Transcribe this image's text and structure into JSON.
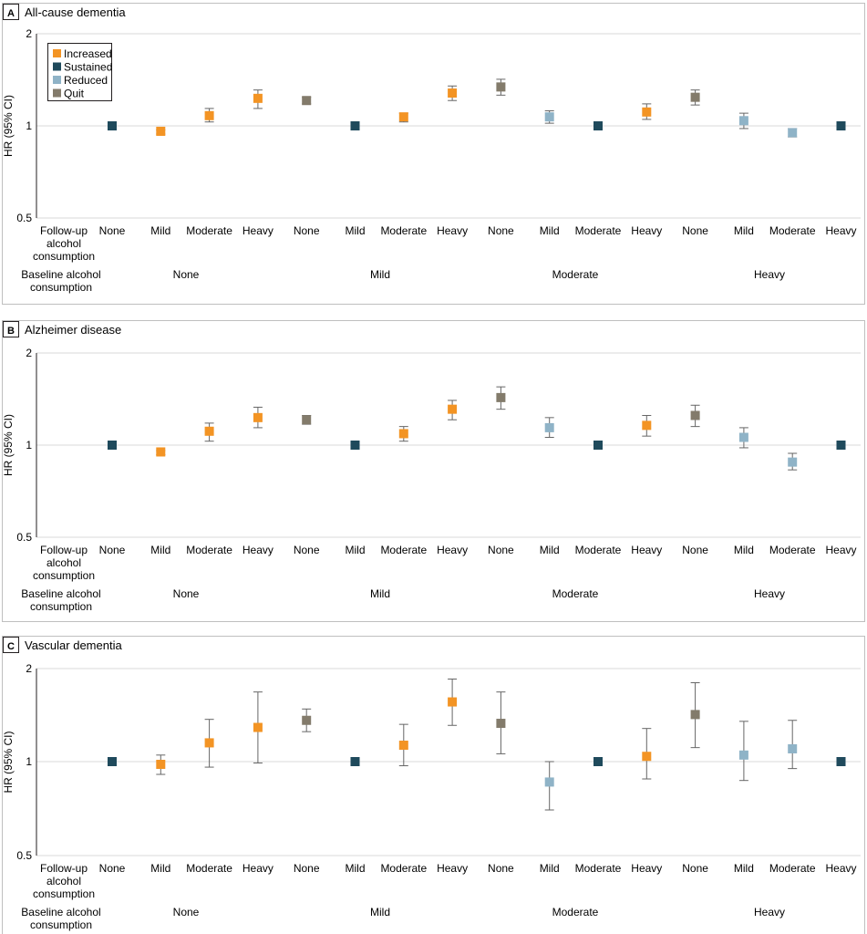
{
  "chart_data": [
    {
      "type": "scatter",
      "panel_label": "A",
      "title": "All-cause dementia",
      "ylabel": "HR (95% CI)",
      "yscale": "log",
      "ylim": [
        0.5,
        2
      ],
      "yticks": [
        "0.5",
        "1",
        "2"
      ],
      "row_label_followup": [
        "Follow-up",
        "alcohol",
        "consumption"
      ],
      "row_label_baseline": [
        "Baseline alcohol",
        "consumption"
      ],
      "legend": [
        "Increased",
        "Sustained",
        "Reduced",
        "Quit"
      ],
      "baseline_groups": [
        "None",
        "Mild",
        "Moderate",
        "Heavy"
      ],
      "points": [
        {
          "baseline": "None",
          "followup": "None",
          "status": "Sustained",
          "hr": 1.0
        },
        {
          "baseline": "None",
          "followup": "Mild",
          "status": "Increased",
          "hr": 0.96,
          "lo": 0.94,
          "hi": 0.97
        },
        {
          "baseline": "None",
          "followup": "Moderate",
          "status": "Increased",
          "hr": 1.08,
          "lo": 1.03,
          "hi": 1.14
        },
        {
          "baseline": "None",
          "followup": "Heavy",
          "status": "Increased",
          "hr": 1.23,
          "lo": 1.14,
          "hi": 1.31
        },
        {
          "baseline": "Mild",
          "followup": "None",
          "status": "Quit",
          "hr": 1.21,
          "lo": 1.18,
          "hi": 1.24
        },
        {
          "baseline": "Mild",
          "followup": "Mild",
          "status": "Sustained",
          "hr": 1.0
        },
        {
          "baseline": "Mild",
          "followup": "Moderate",
          "status": "Increased",
          "hr": 1.07,
          "lo": 1.03,
          "hi": 1.1
        },
        {
          "baseline": "Mild",
          "followup": "Heavy",
          "status": "Increased",
          "hr": 1.28,
          "lo": 1.21,
          "hi": 1.35
        },
        {
          "baseline": "Moderate",
          "followup": "None",
          "status": "Quit",
          "hr": 1.34,
          "lo": 1.26,
          "hi": 1.42
        },
        {
          "baseline": "Moderate",
          "followup": "Mild",
          "status": "Reduced",
          "hr": 1.07,
          "lo": 1.02,
          "hi": 1.12
        },
        {
          "baseline": "Moderate",
          "followup": "Moderate",
          "status": "Sustained",
          "hr": 1.0
        },
        {
          "baseline": "Moderate",
          "followup": "Heavy",
          "status": "Increased",
          "hr": 1.11,
          "lo": 1.05,
          "hi": 1.18
        },
        {
          "baseline": "Heavy",
          "followup": "None",
          "status": "Quit",
          "hr": 1.24,
          "lo": 1.17,
          "hi": 1.31
        },
        {
          "baseline": "Heavy",
          "followup": "Mild",
          "status": "Reduced",
          "hr": 1.04,
          "lo": 0.98,
          "hi": 1.1
        },
        {
          "baseline": "Heavy",
          "followup": "Moderate",
          "status": "Reduced",
          "hr": 0.95,
          "lo": 0.92,
          "hi": 0.98
        },
        {
          "baseline": "Heavy",
          "followup": "Heavy",
          "status": "Sustained",
          "hr": 1.0
        }
      ]
    },
    {
      "type": "scatter",
      "panel_label": "B",
      "title": "Alzheimer disease",
      "ylabel": "HR (95% CI)",
      "yscale": "log",
      "ylim": [
        0.5,
        2
      ],
      "yticks": [
        "0.5",
        "1",
        "2"
      ],
      "row_label_followup": [
        "Follow-up",
        "alcohol",
        "consumption"
      ],
      "row_label_baseline": [
        "Baseline alcohol",
        "consumption"
      ],
      "baseline_groups": [
        "None",
        "Mild",
        "Moderate",
        "Heavy"
      ],
      "points": [
        {
          "baseline": "None",
          "followup": "None",
          "status": "Sustained",
          "hr": 1.0
        },
        {
          "baseline": "None",
          "followup": "Mild",
          "status": "Increased",
          "hr": 0.95,
          "lo": 0.93,
          "hi": 0.96
        },
        {
          "baseline": "None",
          "followup": "Moderate",
          "status": "Increased",
          "hr": 1.11,
          "lo": 1.03,
          "hi": 1.18
        },
        {
          "baseline": "None",
          "followup": "Heavy",
          "status": "Increased",
          "hr": 1.23,
          "lo": 1.14,
          "hi": 1.33
        },
        {
          "baseline": "Mild",
          "followup": "None",
          "status": "Quit",
          "hr": 1.21,
          "lo": 1.17,
          "hi": 1.25
        },
        {
          "baseline": "Mild",
          "followup": "Mild",
          "status": "Sustained",
          "hr": 1.0
        },
        {
          "baseline": "Mild",
          "followup": "Moderate",
          "status": "Increased",
          "hr": 1.09,
          "lo": 1.03,
          "hi": 1.15
        },
        {
          "baseline": "Mild",
          "followup": "Heavy",
          "status": "Increased",
          "hr": 1.31,
          "lo": 1.21,
          "hi": 1.4
        },
        {
          "baseline": "Moderate",
          "followup": "None",
          "status": "Quit",
          "hr": 1.43,
          "lo": 1.31,
          "hi": 1.55
        },
        {
          "baseline": "Moderate",
          "followup": "Mild",
          "status": "Reduced",
          "hr": 1.14,
          "lo": 1.06,
          "hi": 1.23
        },
        {
          "baseline": "Moderate",
          "followup": "Moderate",
          "status": "Sustained",
          "hr": 1.0
        },
        {
          "baseline": "Moderate",
          "followup": "Heavy",
          "status": "Increased",
          "hr": 1.16,
          "lo": 1.07,
          "hi": 1.25
        },
        {
          "baseline": "Heavy",
          "followup": "None",
          "status": "Quit",
          "hr": 1.25,
          "lo": 1.15,
          "hi": 1.35
        },
        {
          "baseline": "Heavy",
          "followup": "Mild",
          "status": "Reduced",
          "hr": 1.06,
          "lo": 0.98,
          "hi": 1.14
        },
        {
          "baseline": "Heavy",
          "followup": "Moderate",
          "status": "Reduced",
          "hr": 0.88,
          "lo": 0.83,
          "hi": 0.94
        },
        {
          "baseline": "Heavy",
          "followup": "Heavy",
          "status": "Sustained",
          "hr": 1.0
        }
      ]
    },
    {
      "type": "scatter",
      "panel_label": "C",
      "title": "Vascular dementia",
      "ylabel": "HR (95% CI)",
      "yscale": "log",
      "ylim": [
        0.5,
        2
      ],
      "yticks": [
        "0.5",
        "1",
        "2"
      ],
      "row_label_followup": [
        "Follow-up",
        "alcohol",
        "consumption"
      ],
      "row_label_baseline": [
        "Baseline alcohol",
        "consumption"
      ],
      "baseline_groups": [
        "None",
        "Mild",
        "Moderate",
        "Heavy"
      ],
      "points": [
        {
          "baseline": "None",
          "followup": "None",
          "status": "Sustained",
          "hr": 1.0
        },
        {
          "baseline": "None",
          "followup": "Mild",
          "status": "Increased",
          "hr": 0.98,
          "lo": 0.91,
          "hi": 1.05
        },
        {
          "baseline": "None",
          "followup": "Moderate",
          "status": "Increased",
          "hr": 1.15,
          "lo": 0.96,
          "hi": 1.37
        },
        {
          "baseline": "None",
          "followup": "Heavy",
          "status": "Increased",
          "hr": 1.29,
          "lo": 0.99,
          "hi": 1.68
        },
        {
          "baseline": "Mild",
          "followup": "None",
          "status": "Quit",
          "hr": 1.36,
          "lo": 1.25,
          "hi": 1.48
        },
        {
          "baseline": "Mild",
          "followup": "Mild",
          "status": "Sustained",
          "hr": 1.0
        },
        {
          "baseline": "Mild",
          "followup": "Moderate",
          "status": "Increased",
          "hr": 1.13,
          "lo": 0.97,
          "hi": 1.32
        },
        {
          "baseline": "Mild",
          "followup": "Heavy",
          "status": "Increased",
          "hr": 1.56,
          "lo": 1.31,
          "hi": 1.85
        },
        {
          "baseline": "Moderate",
          "followup": "None",
          "status": "Quit",
          "hr": 1.33,
          "lo": 1.06,
          "hi": 1.68
        },
        {
          "baseline": "Moderate",
          "followup": "Mild",
          "status": "Reduced",
          "hr": 0.86,
          "lo": 0.7,
          "hi": 1.0
        },
        {
          "baseline": "Moderate",
          "followup": "Moderate",
          "status": "Sustained",
          "hr": 1.0
        },
        {
          "baseline": "Moderate",
          "followup": "Heavy",
          "status": "Increased",
          "hr": 1.04,
          "lo": 0.88,
          "hi": 1.28
        },
        {
          "baseline": "Heavy",
          "followup": "None",
          "status": "Quit",
          "hr": 1.42,
          "lo": 1.11,
          "hi": 1.8
        },
        {
          "baseline": "Heavy",
          "followup": "Mild",
          "status": "Reduced",
          "hr": 1.05,
          "lo": 0.87,
          "hi": 1.35
        },
        {
          "baseline": "Heavy",
          "followup": "Moderate",
          "status": "Reduced",
          "hr": 1.1,
          "lo": 0.95,
          "hi": 1.36
        },
        {
          "baseline": "Heavy",
          "followup": "Heavy",
          "status": "Sustained",
          "hr": 1.0
        }
      ]
    }
  ],
  "colors": {
    "Increased": "#f39424",
    "Sustained": "#1f4a5c",
    "Reduced": "#8fb3c7",
    "Quit": "#837b6b",
    "grid": "#d9d9d9",
    "frame": "#bfbfbf",
    "errorbar": "#666666"
  }
}
